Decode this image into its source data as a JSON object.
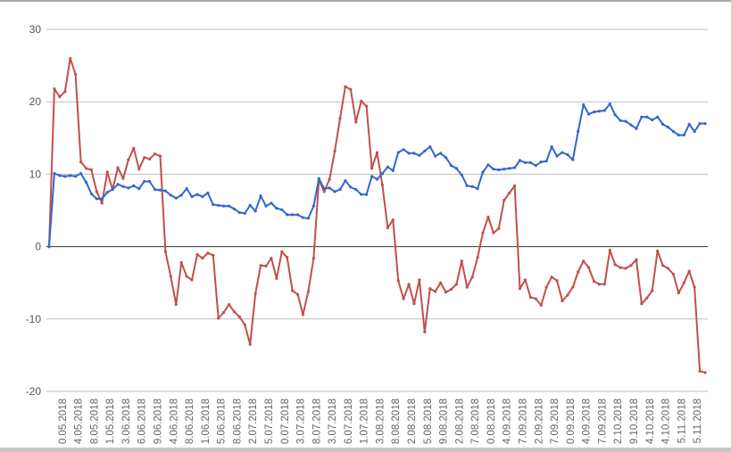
{
  "chart_data": {
    "type": "line",
    "title": "",
    "xlabel": "",
    "ylabel": "",
    "ylim": [
      -20,
      30
    ],
    "yticks": [
      30,
      20,
      10,
      0,
      -10,
      -20
    ],
    "grid": true,
    "legend": "none",
    "x_tick_labels": [
      "0.05.2018",
      "4.05.2018",
      "8.05.2018",
      "1.05.2018",
      "3.06.2018",
      "6.06.2018",
      "9.06.2018",
      "4.06.2018",
      "8.06.2018",
      "1.06.2018",
      "5.06.2018",
      "8.06.2018",
      "2.07.2018",
      "5.07.2018",
      "0.07.2018",
      "3.07.2018",
      "8.07.2018",
      "3.07.2018",
      "6.07.2018",
      "1.07.2018",
      "3.08.2018",
      "8.08.2018",
      "2.08.2018",
      "5.08.2018",
      "9.08.2018",
      "2.08.2018",
      "7.08.2018",
      "0.08.2018",
      "4.09.2018",
      "7.09.2018",
      "2.09.2018",
      "7.09.2018",
      "0.09.2018",
      "4.09.2018",
      "7.09.2018",
      "2.10.2018",
      "9.10.2018",
      "4.10.2018",
      "4.10.2018",
      "5.11.2018",
      "5.11.2018"
    ],
    "series": [
      {
        "name": "blue",
        "color": "#3366cc",
        "values": [
          0,
          10.1,
          9.8,
          9.7,
          9.8,
          9.7,
          10.1,
          8.9,
          7.3,
          6.6,
          6.6,
          7.5,
          7.9,
          8.6,
          8.3,
          8.1,
          8.4,
          8.0,
          9.0,
          9.0,
          7.9,
          7.8,
          7.7,
          7.1,
          6.7,
          7.1,
          8.0,
          6.9,
          7.2,
          6.9,
          7.4,
          5.8,
          5.7,
          5.6,
          5.6,
          5.2,
          4.7,
          4.6,
          5.7,
          4.9,
          7.0,
          5.6,
          6.0,
          5.3,
          5.1,
          4.4,
          4.4,
          4.4,
          4.0,
          3.9,
          5.6,
          9.4,
          8.0,
          8.1,
          7.6,
          7.9,
          9.1,
          8.2,
          7.9,
          7.2,
          7.2,
          9.7,
          9.3,
          10.1,
          11.0,
          10.5,
          13.0,
          13.4,
          12.9,
          12.9,
          12.6,
          13.2,
          13.8,
          12.5,
          12.9,
          12.3,
          11.2,
          10.8,
          9.9,
          8.4,
          8.3,
          8.0,
          10.3,
          11.3,
          10.7,
          10.6,
          10.7,
          10.8,
          10.9,
          11.9,
          11.6,
          11.6,
          11.2,
          11.7,
          11.8,
          13.8,
          12.5,
          13.0,
          12.7,
          12.0,
          15.9,
          19.6,
          18.3,
          18.6,
          18.7,
          18.8,
          19.7,
          18.2,
          17.4,
          17.3,
          16.8,
          16.3,
          17.9,
          17.9,
          17.5,
          17.9,
          16.9,
          16.5,
          15.9,
          15.4,
          15.4,
          16.9,
          15.9,
          17.0,
          17.0
        ]
      },
      {
        "name": "red",
        "color": "#c0504d",
        "values": [
          0,
          21.8,
          20.7,
          21.4,
          26.0,
          23.8,
          11.7,
          10.8,
          10.6,
          7.6,
          6.0,
          10.3,
          7.9,
          10.9,
          9.4,
          12.0,
          13.6,
          10.7,
          12.3,
          12.1,
          12.8,
          12.5,
          -0.7,
          -4.1,
          -8.0,
          -2.2,
          -4.1,
          -4.6,
          -1.1,
          -1.6,
          -0.9,
          -1.2,
          -9.9,
          -9.1,
          -8.0,
          -9.0,
          -9.7,
          -10.8,
          -13.5,
          -6.5,
          -2.6,
          -2.7,
          -1.6,
          -4.4,
          -0.7,
          -1.5,
          -6.1,
          -6.6,
          -9.4,
          -6.2,
          -1.6,
          9.2,
          7.6,
          9.3,
          13.2,
          17.7,
          22.1,
          21.7,
          17.2,
          20.1,
          19.4,
          10.8,
          13.0,
          8.5,
          2.6,
          3.7,
          -4.7,
          -7.2,
          -5.2,
          -7.9,
          -4.6,
          -11.8,
          -5.8,
          -6.2,
          -5.0,
          -6.3,
          -5.9,
          -5.2,
          -2.0,
          -5.6,
          -4.2,
          -1.5,
          1.9,
          4.1,
          1.9,
          2.5,
          6.4,
          7.4,
          8.4,
          -5.8,
          -4.6,
          -7.0,
          -7.2,
          -8.1,
          -5.6,
          -4.2,
          -4.7,
          -7.5,
          -6.7,
          -5.6,
          -3.5,
          -2.0,
          -2.9,
          -4.8,
          -5.2,
          -5.2,
          -0.5,
          -2.5,
          -2.9,
          -3.0,
          -2.6,
          -1.8,
          -7.9,
          -7.1,
          -6.1,
          -0.6,
          -2.6,
          -3.0,
          -3.8,
          -6.4,
          -5.0,
          -3.4,
          -5.6,
          -17.2,
          -17.4
        ]
      }
    ]
  }
}
